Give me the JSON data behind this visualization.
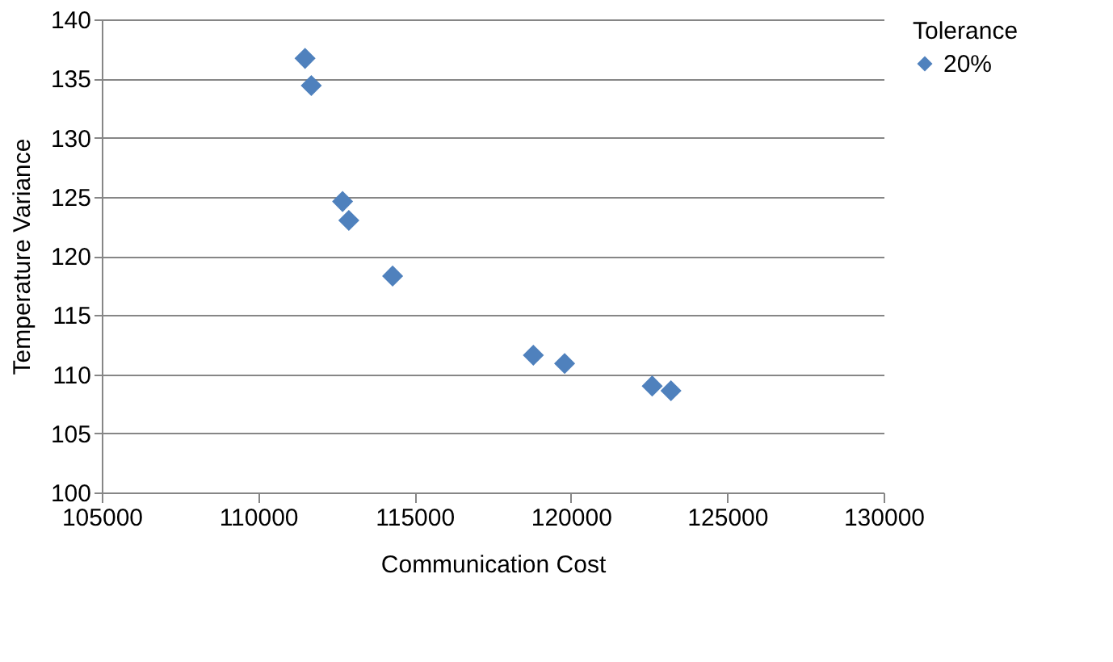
{
  "chart_data": {
    "type": "scatter",
    "xlabel": "Communication Cost",
    "ylabel": "Temperature Variance",
    "legend_title": "Tolerance",
    "x": [
      111500,
      111700,
      112700,
      112900,
      114300,
      118800,
      119800,
      122600,
      123200
    ],
    "series": [
      {
        "name": "20%",
        "color": "#4f81bd",
        "values": [
          136.7,
          134.4,
          124.6,
          123.0,
          118.3,
          111.6,
          110.9,
          109.0,
          108.6
        ]
      }
    ],
    "xlim": [
      105000,
      130000
    ],
    "xticks": [
      105000,
      110000,
      115000,
      120000,
      125000,
      130000
    ],
    "ylim": [
      100,
      140
    ],
    "yticks": [
      100,
      105,
      110,
      115,
      120,
      125,
      130,
      135,
      140
    ],
    "grid": "y",
    "legend": "right",
    "marker": "diamond"
  }
}
